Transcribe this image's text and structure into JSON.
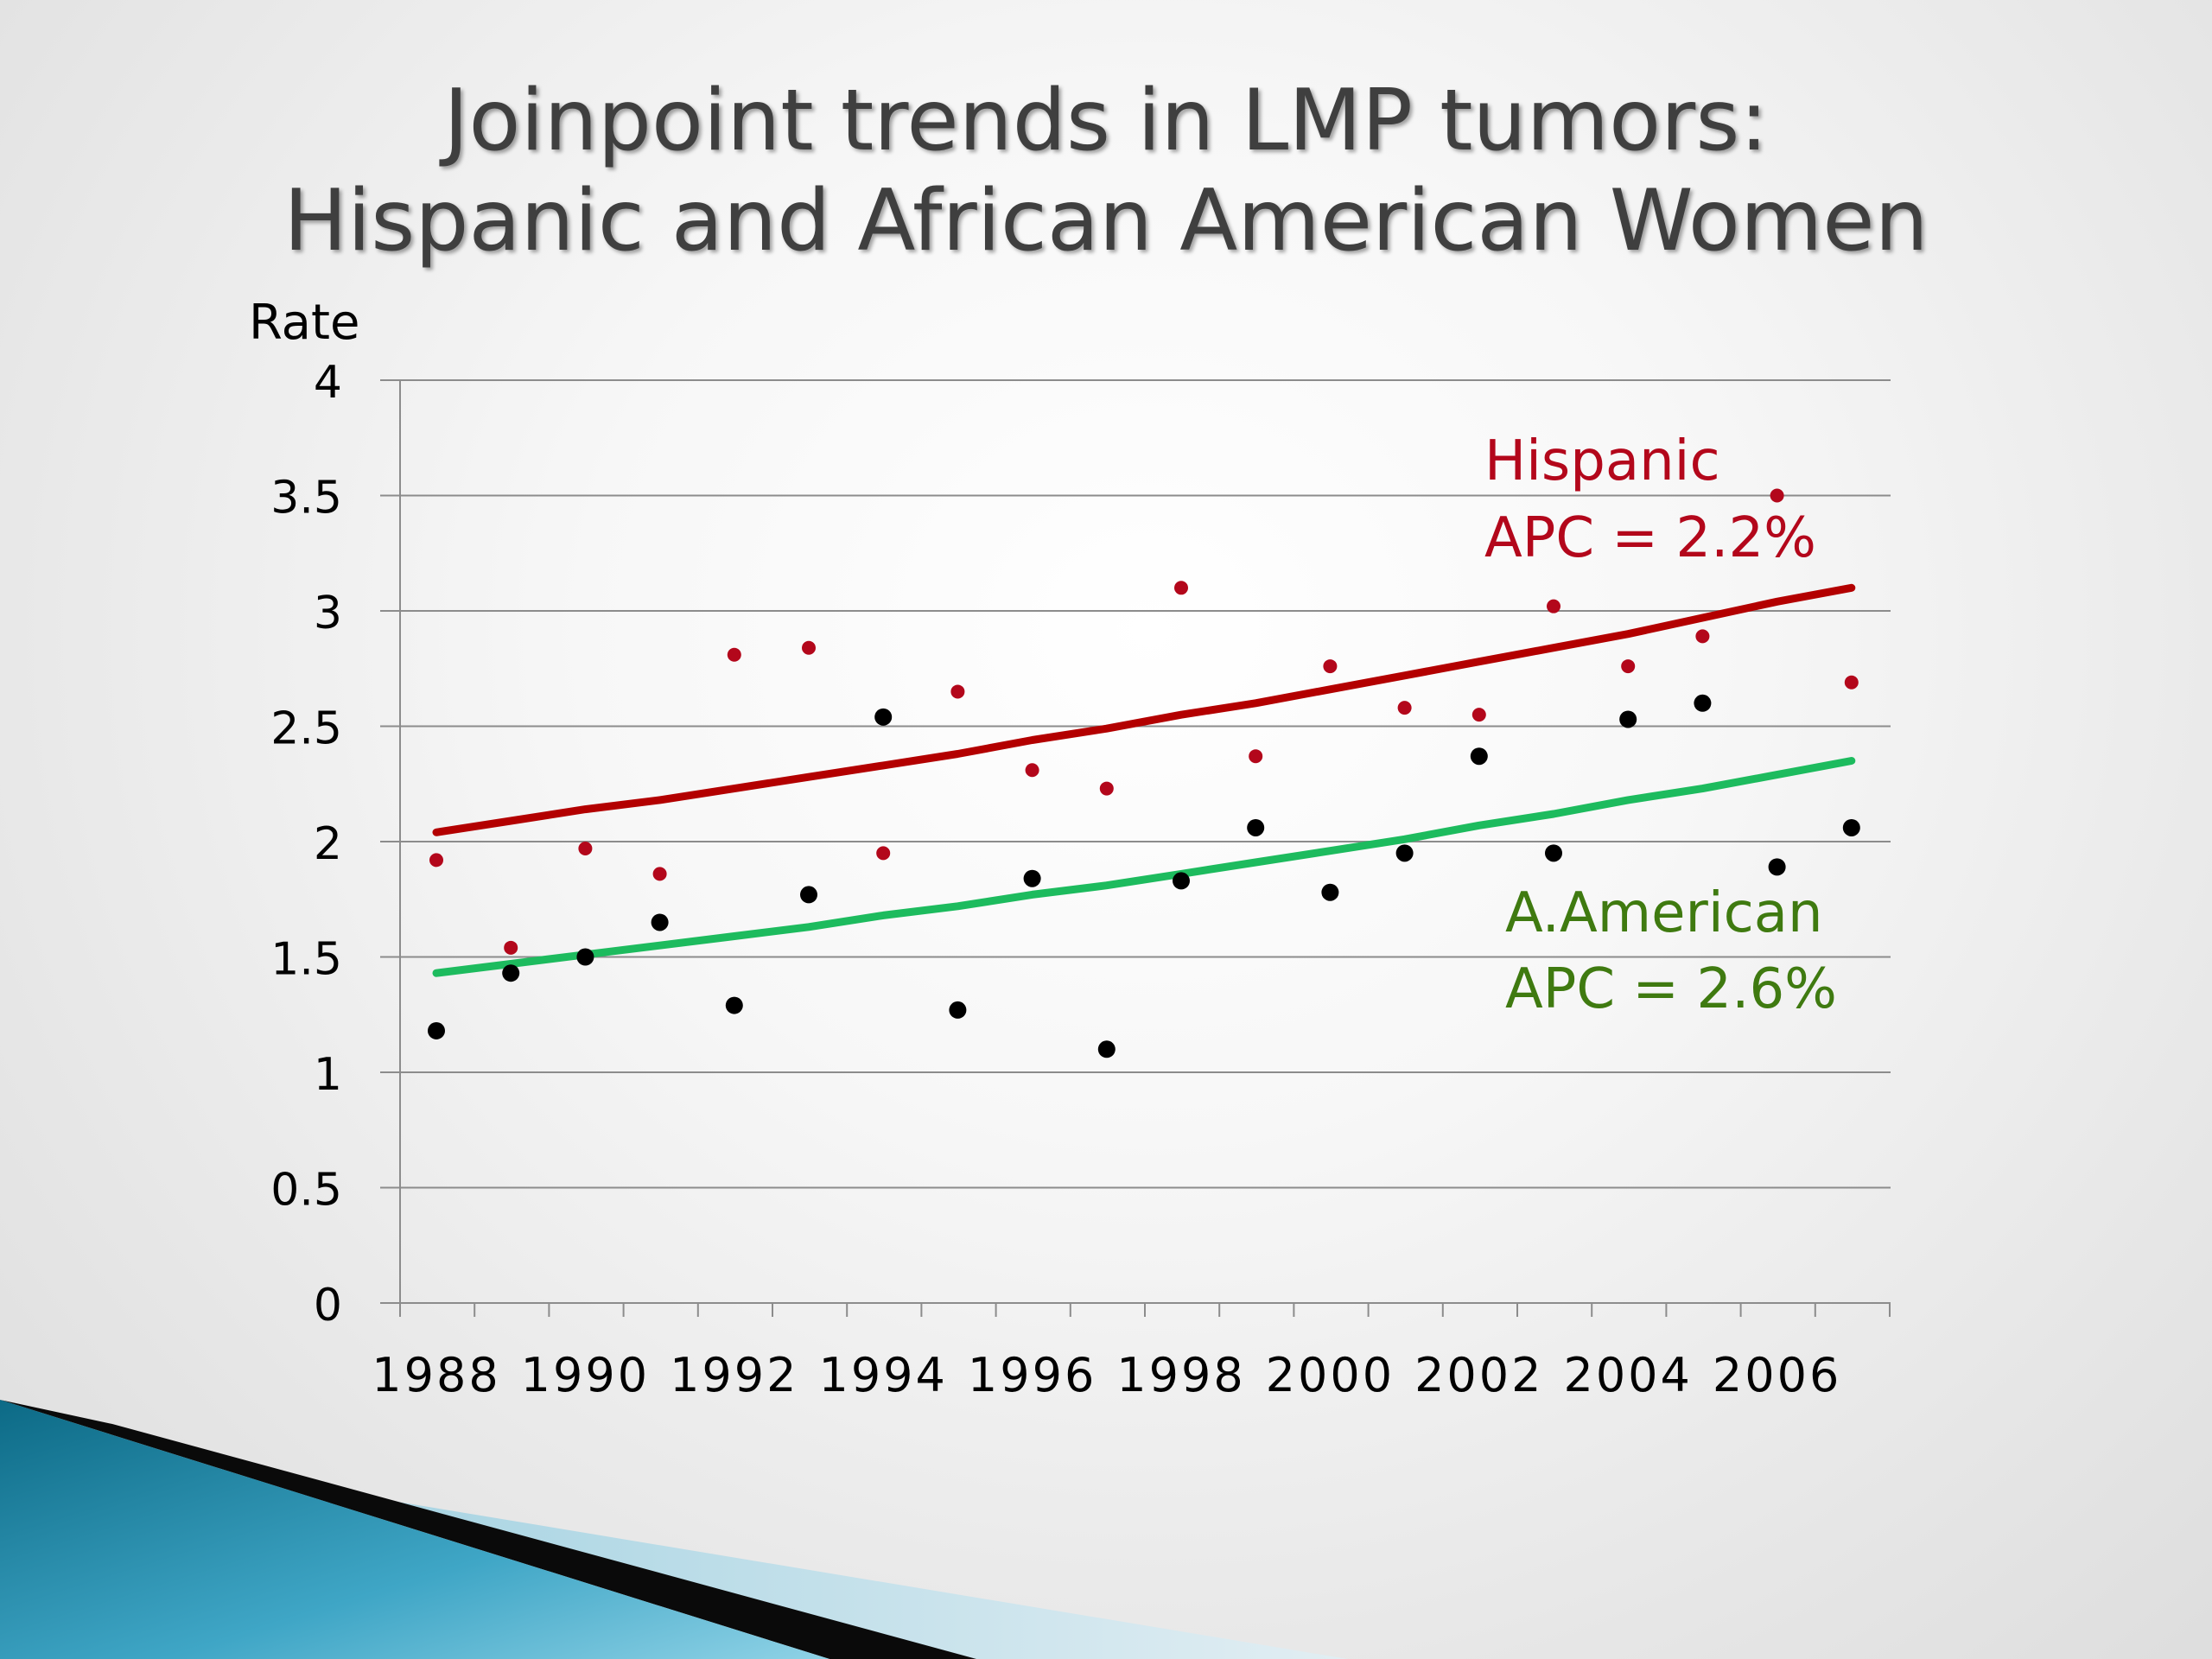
{
  "slide": {
    "title_line1": "Joinpoint trends in LMP tumors:",
    "title_line2": "Hispanic and African American Women"
  },
  "chart_data": {
    "type": "scatter",
    "ylabel": "Rate",
    "ylim": [
      0,
      4
    ],
    "yticks": [
      "0",
      "0.5",
      "1",
      "1.5",
      "2",
      "2.5",
      "3",
      "3.5",
      "4"
    ],
    "x_years": [
      1988,
      1989,
      1990,
      1991,
      1992,
      1993,
      1994,
      1995,
      1996,
      1997,
      1998,
      1999,
      2000,
      2001,
      2002,
      2003,
      2004,
      2005,
      2006,
      2007
    ],
    "xticks": [
      "1988",
      "1990",
      "1992",
      "1994",
      "1996",
      "1998",
      "2000",
      "2002",
      "2004",
      "2006"
    ],
    "grid": true,
    "series": [
      {
        "key": "hispanic",
        "color": "#b3071b",
        "trend_color": "#b30000",
        "label_line1": "Hispanic",
        "label_line2": "APC = 2.2%",
        "points": [
          1.92,
          1.54,
          1.97,
          1.86,
          2.81,
          2.84,
          1.95,
          2.65,
          2.31,
          2.23,
          3.1,
          2.37,
          2.76,
          2.58,
          2.55,
          3.02,
          2.76,
          2.89,
          3.5,
          2.69
        ],
        "trend": [
          2.04,
          2.09,
          2.14,
          2.18,
          2.23,
          2.28,
          2.33,
          2.38,
          2.44,
          2.49,
          2.55,
          2.6,
          2.66,
          2.72,
          2.78,
          2.84,
          2.9,
          2.97,
          3.04,
          3.1
        ]
      },
      {
        "key": "african_american",
        "color": "#000000",
        "trend_color": "#1dbb5e",
        "label_color": "#3f7a10",
        "label_line1": "A.American",
        "label_line2": "APC = 2.6%",
        "points": [
          1.18,
          1.43,
          1.5,
          1.65,
          1.29,
          1.77,
          2.54,
          1.27,
          1.84,
          1.1,
          1.83,
          2.06,
          1.78,
          1.95,
          2.37,
          1.95,
          2.53,
          2.6,
          1.89,
          2.06
        ],
        "trend": [
          1.43,
          1.47,
          1.51,
          1.55,
          1.59,
          1.63,
          1.68,
          1.72,
          1.77,
          1.81,
          1.86,
          1.91,
          1.96,
          2.01,
          2.07,
          2.12,
          2.18,
          2.23,
          2.29,
          2.35
        ]
      }
    ]
  }
}
